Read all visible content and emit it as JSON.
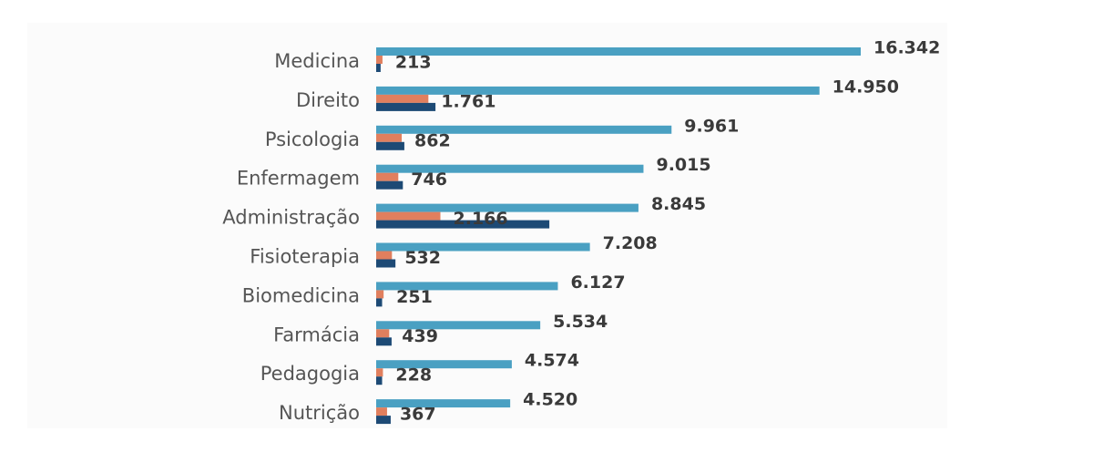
{
  "chart_data": {
    "type": "bar",
    "orientation": "horizontal",
    "categories": [
      "Medicina",
      "Direito",
      "Psicologia",
      "Enfermagem",
      "Administração",
      "Fisioterapia",
      "Biomedicina",
      "Farmácia",
      "Pedagogia",
      "Nutrição"
    ],
    "series": [
      {
        "color": "#4aa0c2",
        "values": [
          16342,
          14950,
          9961,
          9015,
          8845,
          7208,
          6127,
          5534,
          4574,
          4520
        ],
        "value_labels": [
          "16.342",
          "14.950",
          "9.961",
          "9.015",
          "8.845",
          "7.208",
          "6.127",
          "5.534",
          "4.574",
          "4.520"
        ]
      },
      {
        "color": "#e07f5e",
        "values": [
          213,
          1761,
          862,
          746,
          2166,
          532,
          251,
          439,
          228,
          367
        ],
        "value_labels": [
          "213",
          "1.761",
          "862",
          "746",
          "2.166",
          "532",
          "251",
          "439",
          "228",
          "367"
        ]
      },
      {
        "color": "#1d4a75",
        "values": [
          150,
          2000,
          950,
          900,
          5840,
          650,
          200,
          520,
          200,
          490
        ]
      }
    ],
    "xlim": [
      0,
      16342
    ]
  }
}
